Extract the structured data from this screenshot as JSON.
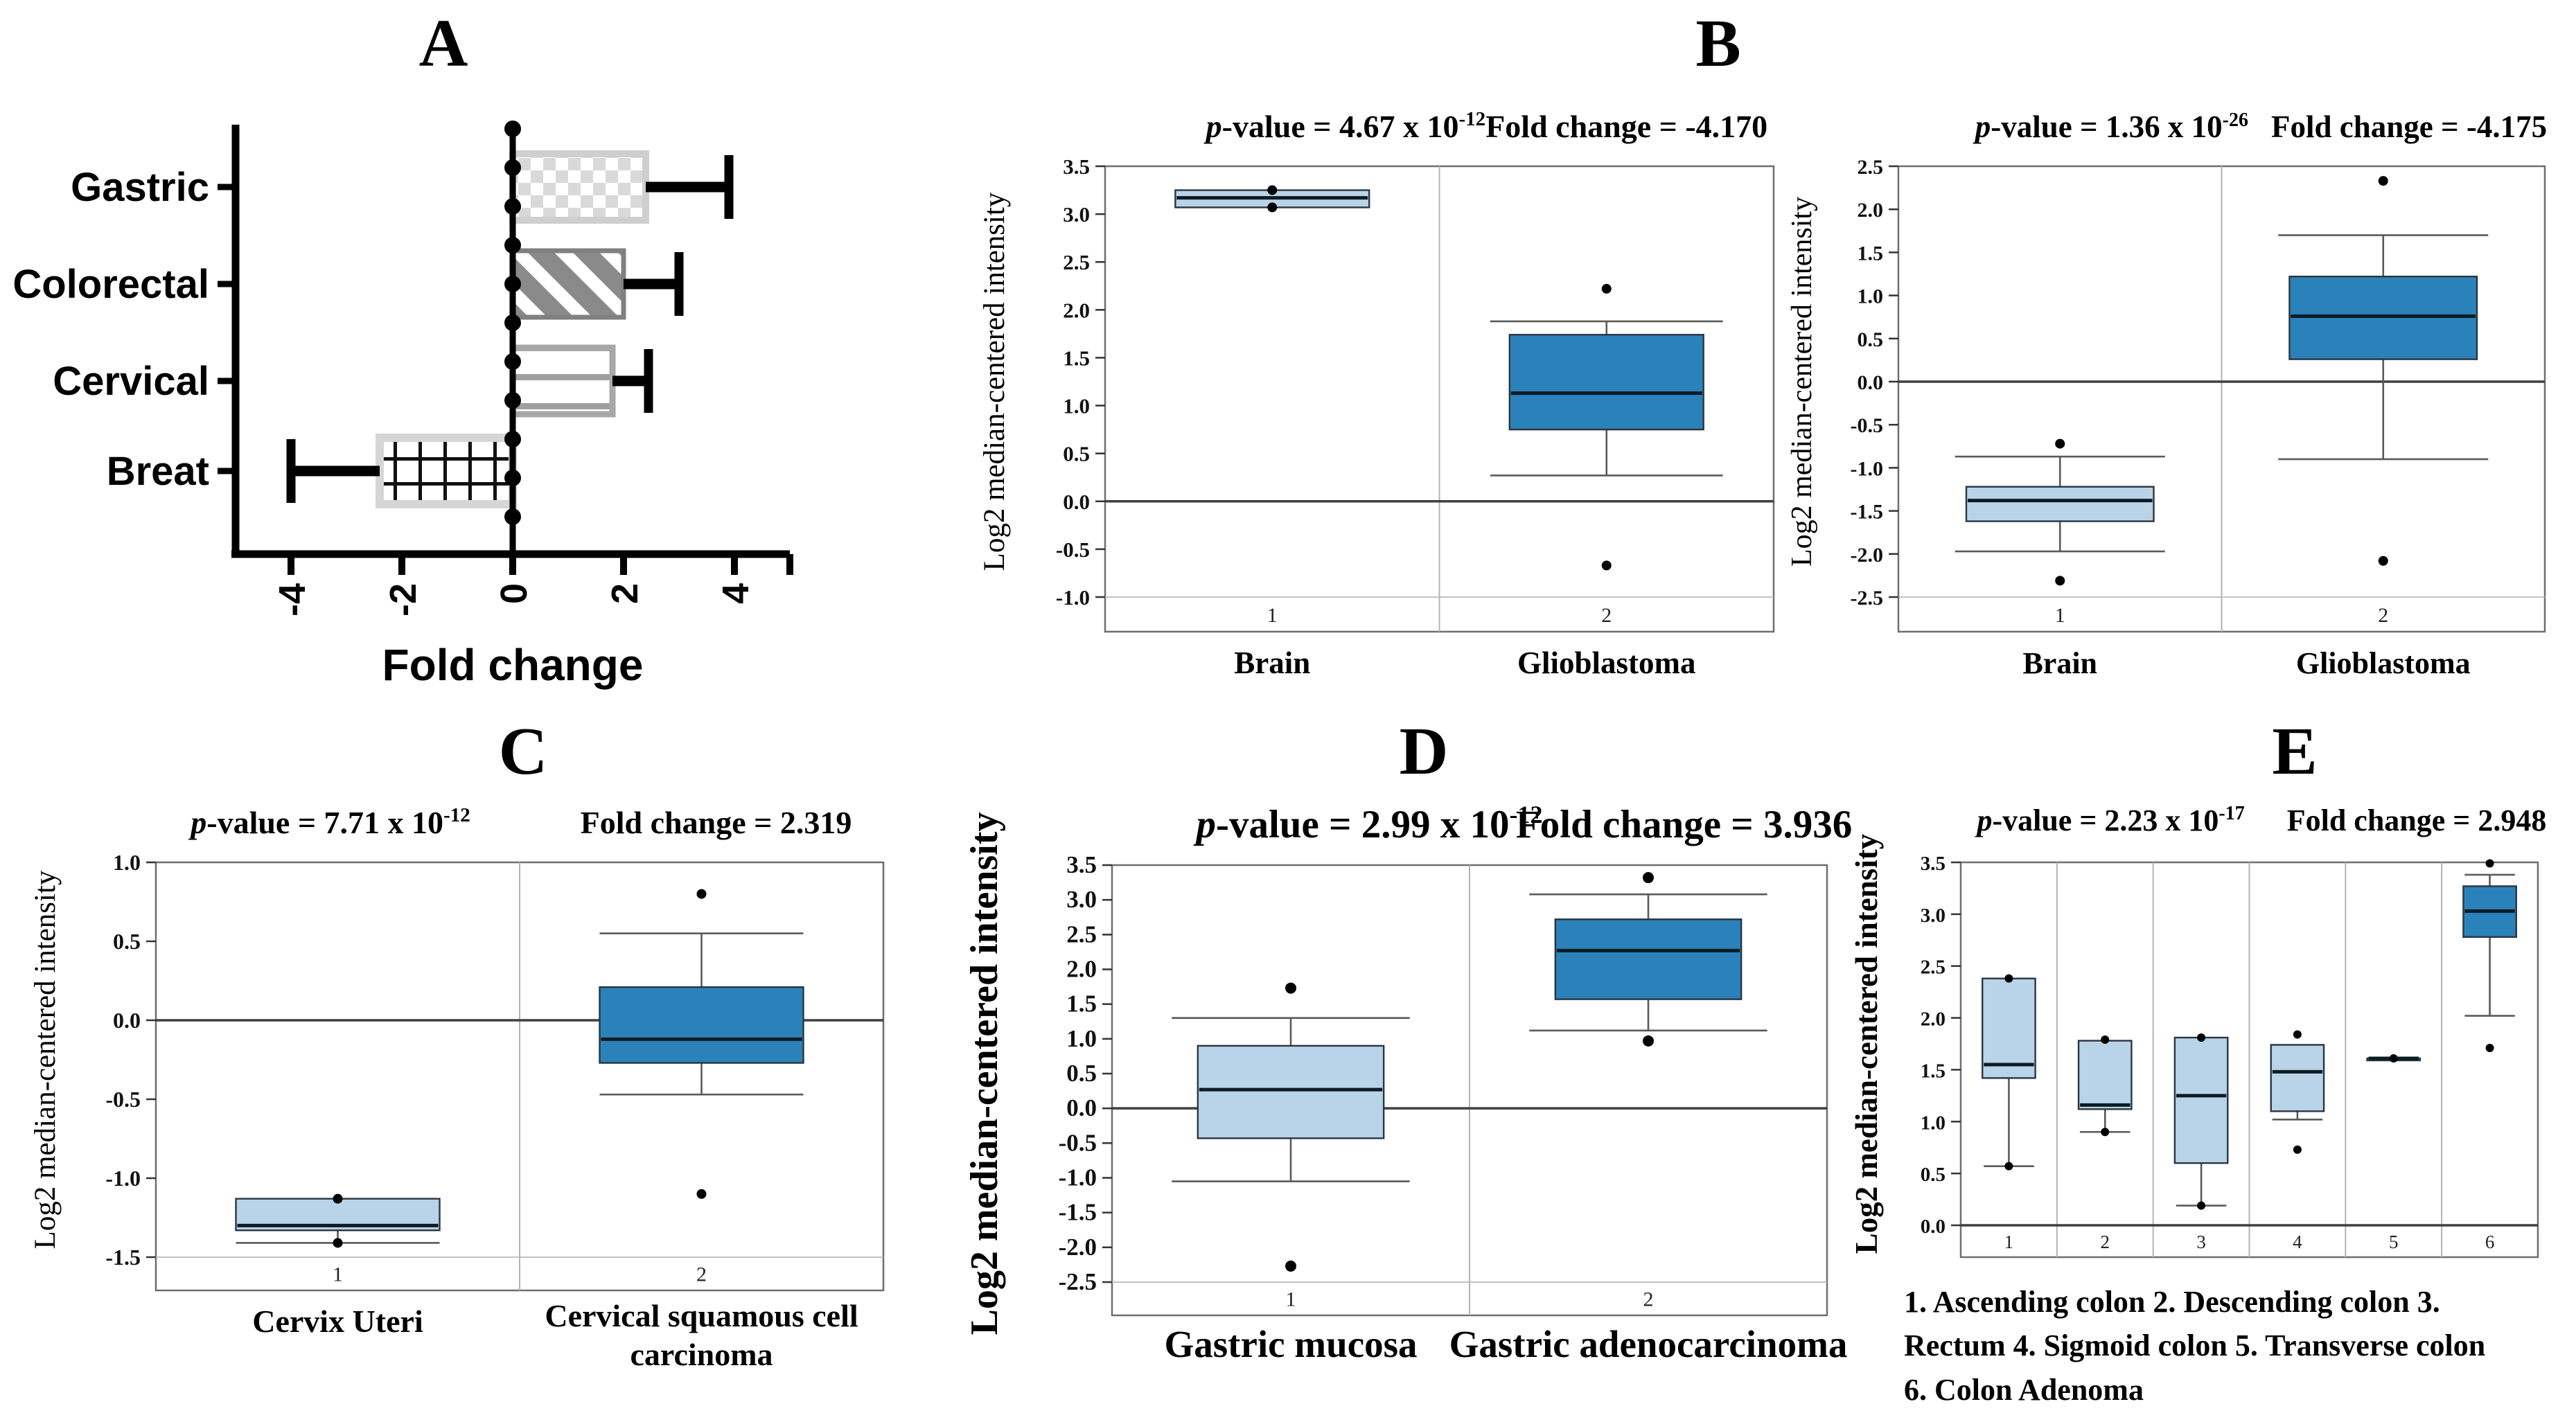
{
  "figure": {
    "panel_labels": {
      "a": "A",
      "b": "B",
      "c": "C",
      "d": "D",
      "e": "E"
    }
  },
  "e_notes": [
    "1. Ascending colon 2. Descending colon 3.",
    "Rectum 4. Sigmoid colon 5. Transverse  colon",
    "6. Colon Adenoma"
  ],
  "colors": {
    "box_light": "#b9d4e9",
    "box_dark": "#2b82ba",
    "median": "#0d1b24",
    "box_stroke": "#2a3540",
    "whisker": "#5a5a5a",
    "frame": "#6e6e6e",
    "divider": "#b3b3b3",
    "zero_line": "#3f3f3f",
    "strip_line": "#b9b9b9",
    "point": "#000000"
  },
  "chart_data": [
    {
      "id": "A",
      "type": "bar",
      "panel": "A",
      "orientation": "horizontal",
      "categories": [
        "Gastric",
        "Colorectal",
        "Cervical",
        "Breat"
      ],
      "values": [
        2.4,
        2.0,
        1.8,
        -2.4
      ],
      "error_to": [
        3.9,
        3.0,
        2.45,
        -4.0
      ],
      "patterns": [
        "checker",
        "diagonal-stripes",
        "horizontal-lines",
        "grid"
      ],
      "xlabel": "Fold change",
      "xticks": [
        -4,
        -2,
        0,
        2,
        4
      ],
      "xlim": [
        -5,
        5
      ]
    },
    {
      "id": "B1",
      "type": "box",
      "panel": "B",
      "p_italic": "p",
      "p_text": "-value = 4.67 x 10",
      "p_exp": "-12",
      "fc_text": "Fold change = -4.170",
      "ylabel": "Log2 median-centered  intensity",
      "ylim": [
        -1.0,
        3.5
      ],
      "yticks": [
        3.5,
        3.0,
        2.5,
        2.0,
        1.5,
        1.0,
        0.5,
        0.0,
        -0.5,
        -1.0
      ],
      "zero_line": 0,
      "groups": [
        {
          "num": "1",
          "label": "Brain",
          "shade": "light",
          "q1": 3.07,
          "median": 3.17,
          "q3": 3.25,
          "points": [
            3.25,
            3.07
          ]
        },
        {
          "num": "2",
          "label": "Glioblastoma",
          "shade": "dark",
          "q1": 0.75,
          "median": 1.13,
          "q3": 1.74,
          "whisker_low": 0.27,
          "whisker_high": 1.88,
          "points": [
            2.22,
            -0.67
          ]
        }
      ]
    },
    {
      "id": "B2",
      "type": "box",
      "panel": "B",
      "p_italic": "p",
      "p_text": "-value = 1.36 x 10",
      "p_exp": "-26",
      "fc_text": "Fold change = -4.175",
      "ylabel": "Log2 median-centered  intensity",
      "ylim": [
        -2.5,
        2.5
      ],
      "yticks": [
        2.5,
        2.0,
        1.5,
        1.0,
        0.5,
        0.0,
        -0.5,
        -1.0,
        -1.5,
        -2.0,
        -2.5
      ],
      "zero_line": 0,
      "groups": [
        {
          "num": "1",
          "label": "Brain",
          "shade": "light",
          "q1": -1.62,
          "median": -1.38,
          "q3": -1.22,
          "whisker_low": -1.97,
          "whisker_high": -0.87,
          "points": [
            -0.72,
            -2.31
          ]
        },
        {
          "num": "2",
          "label": "Glioblastoma",
          "shade": "dark",
          "q1": 0.26,
          "median": 0.76,
          "q3": 1.22,
          "whisker_low": -0.9,
          "whisker_high": 1.7,
          "points": [
            2.33,
            -2.08
          ]
        }
      ]
    },
    {
      "id": "C",
      "type": "box",
      "panel": "C",
      "p_italic": "p",
      "p_text": "-value = 7.71 x 10",
      "p_exp": "-12",
      "fc_text": "Fold change = 2.319",
      "ylabel": "Log2 median-centered  intensity",
      "ylim": [
        -1.5,
        1.0
      ],
      "yticks": [
        1.0,
        0.5,
        0.0,
        -0.5,
        -1.0,
        -1.5
      ],
      "zero_line": 0,
      "groups": [
        {
          "num": "1",
          "label": "Cervix Uteri",
          "shade": "light",
          "q1": -1.33,
          "median": -1.3,
          "q3": -1.13,
          "whisker_low": -1.41,
          "points": [
            -1.13,
            -1.41
          ]
        },
        {
          "num": "2",
          "label": "Cervical squamous cell\ncarcinoma",
          "shade": "dark",
          "q1": -0.27,
          "median": -0.12,
          "q3": 0.21,
          "whisker_low": -0.47,
          "whisker_high": 0.55,
          "points": [
            0.8,
            -1.1
          ]
        }
      ]
    },
    {
      "id": "D",
      "type": "box",
      "panel": "D",
      "p_italic": "p",
      "p_text": "-value = 2.99 x 10",
      "p_exp": "-12",
      "fc_text": "Fold change = 3.936",
      "ylabel": "Log2 median-centered  intensity",
      "ylim": [
        -2.5,
        3.5
      ],
      "yticks": [
        3.5,
        3.0,
        2.5,
        2.0,
        1.5,
        1.0,
        0.5,
        0.0,
        -0.5,
        -1.0,
        -1.5,
        -2.0,
        -2.5
      ],
      "zero_line": 0,
      "groups": [
        {
          "num": "1",
          "label": "Gastric mucosa",
          "shade": "light",
          "q1": -0.43,
          "median": 0.27,
          "q3": 0.9,
          "whisker_low": -1.05,
          "whisker_high": 1.3,
          "points": [
            1.73,
            -2.27
          ]
        },
        {
          "num": "2",
          "label": "Gastric adenocarcinoma",
          "shade": "dark",
          "q1": 1.57,
          "median": 2.27,
          "q3": 2.72,
          "whisker_low": 1.12,
          "whisker_high": 3.08,
          "points": [
            3.32,
            0.97
          ]
        }
      ]
    },
    {
      "id": "E",
      "type": "box",
      "panel": "E",
      "p_italic": "p",
      "p_text": "-value = 2.23 x 10",
      "p_exp": "-17",
      "fc_text": "Fold change = 2.948",
      "ylabel": "Log2 median-centered intensity",
      "ylim": [
        0.0,
        3.5
      ],
      "yticks": [
        3.5,
        3.0,
        2.5,
        2.0,
        1.5,
        1.0,
        0.5,
        0.0
      ],
      "zero_line": 0,
      "groups": [
        {
          "num": "1",
          "label": "Ascending colon",
          "shade": "light",
          "q1": 1.42,
          "median": 1.55,
          "q3": 2.38,
          "whisker_low": 0.57,
          "points": [
            2.38,
            0.57
          ]
        },
        {
          "num": "2",
          "label": "Descending colon",
          "shade": "light",
          "q1": 1.12,
          "median": 1.16,
          "q3": 1.78,
          "whisker_low": 0.9,
          "points": [
            1.79,
            0.9
          ]
        },
        {
          "num": "3",
          "label": "Rectum",
          "shade": "light",
          "q1": 0.6,
          "median": 1.25,
          "q3": 1.81,
          "whisker_low": 0.19,
          "points": [
            1.81,
            0.19
          ]
        },
        {
          "num": "4",
          "label": "Sigmoid colon",
          "shade": "light",
          "q1": 1.1,
          "median": 1.48,
          "q3": 1.74,
          "whisker_low": 1.02,
          "points": [
            1.84,
            0.73
          ]
        },
        {
          "num": "5",
          "label": "Transverse colon",
          "shade": "light",
          "q1": 1.61,
          "median": 1.61,
          "q3": 1.61,
          "points": [
            1.61
          ]
        },
        {
          "num": "6",
          "label": "Colon Adenoma",
          "shade": "dark",
          "q1": 2.78,
          "median": 3.03,
          "q3": 3.27,
          "whisker_low": 2.02,
          "whisker_high": 3.38,
          "points": [
            3.49,
            1.71
          ]
        }
      ]
    }
  ]
}
